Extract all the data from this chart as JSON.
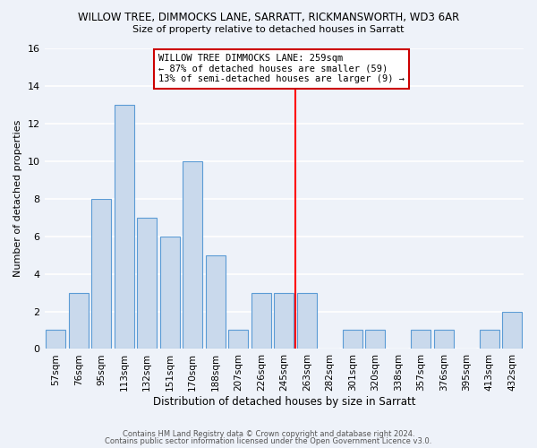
{
  "title": "WILLOW TREE, DIMMOCKS LANE, SARRATT, RICKMANSWORTH, WD3 6AR",
  "subtitle": "Size of property relative to detached houses in Sarratt",
  "xlabel": "Distribution of detached houses by size in Sarratt",
  "ylabel": "Number of detached properties",
  "bar_labels": [
    "57sqm",
    "76sqm",
    "95sqm",
    "113sqm",
    "132sqm",
    "151sqm",
    "170sqm",
    "188sqm",
    "207sqm",
    "226sqm",
    "245sqm",
    "263sqm",
    "282sqm",
    "301sqm",
    "320sqm",
    "338sqm",
    "357sqm",
    "376sqm",
    "395sqm",
    "413sqm",
    "432sqm"
  ],
  "bar_values": [
    1,
    3,
    8,
    13,
    7,
    6,
    10,
    5,
    1,
    3,
    3,
    3,
    0,
    1,
    1,
    0,
    1,
    1,
    0,
    1,
    2
  ],
  "bar_color": "#c9d9ec",
  "bar_edge_color": "#5b9bd5",
  "vline_index": 11,
  "vline_color": "red",
  "annotation_title": "WILLOW TREE DIMMOCKS LANE: 259sqm",
  "annotation_line1": "← 87% of detached houses are smaller (59)",
  "annotation_line2": "13% of semi-detached houses are larger (9) →",
  "ylim": [
    0,
    16
  ],
  "yticks": [
    0,
    2,
    4,
    6,
    8,
    10,
    12,
    14,
    16
  ],
  "footer1": "Contains HM Land Registry data © Crown copyright and database right 2024.",
  "footer2": "Contains public sector information licensed under the Open Government Licence v3.0.",
  "background_color": "#eef2f9",
  "grid_color": "#ffffff"
}
